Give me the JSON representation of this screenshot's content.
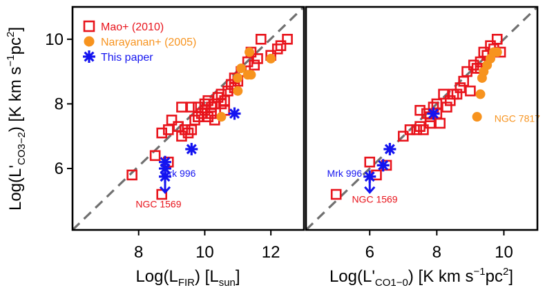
{
  "colors": {
    "mao": "#e8141c",
    "narayanan": "#f7931e",
    "this_paper": "#1414f0",
    "fit_line": "#707070"
  },
  "panels": [
    {
      "xlabel_main": "Log(L",
      "xlabel_sub": "FIR",
      "xlabel_mid": ") [L",
      "xlabel_sub2": "sun",
      "xlabel_end": "]",
      "xlim": [
        6,
        13
      ],
      "ylim": [
        4.1,
        11
      ],
      "xticks": [
        8,
        10,
        12
      ],
      "yticks": [
        6,
        8,
        10
      ],
      "mao": [
        [
          7.8,
          5.8
        ],
        [
          8.5,
          6.4
        ],
        [
          8.7,
          5.2
        ],
        [
          8.9,
          6.2
        ],
        [
          8.7,
          7.1
        ],
        [
          8.9,
          7.2
        ],
        [
          9.0,
          7.5
        ],
        [
          9.2,
          7.3
        ],
        [
          9.3,
          7.0
        ],
        [
          9.4,
          7.2
        ],
        [
          9.5,
          7.1
        ],
        [
          9.3,
          7.9
        ],
        [
          9.6,
          7.9
        ],
        [
          9.6,
          7.2
        ],
        [
          9.7,
          7.5
        ],
        [
          9.8,
          7.6
        ],
        [
          9.8,
          7.9
        ],
        [
          9.9,
          7.7
        ],
        [
          10.0,
          7.8
        ],
        [
          10.0,
          8.0
        ],
        [
          10.1,
          7.6
        ],
        [
          10.1,
          8.1
        ],
        [
          10.2,
          7.9
        ],
        [
          10.2,
          7.7
        ],
        [
          10.3,
          7.5
        ],
        [
          10.3,
          8.0
        ],
        [
          10.4,
          8.2
        ],
        [
          10.5,
          8.0
        ],
        [
          10.5,
          8.3
        ],
        [
          10.6,
          7.8
        ],
        [
          10.6,
          8.1
        ],
        [
          10.7,
          8.4
        ],
        [
          10.8,
          8.6
        ],
        [
          10.9,
          8.5
        ],
        [
          10.9,
          8.8
        ],
        [
          11.0,
          8.7
        ],
        [
          11.1,
          9.0
        ],
        [
          11.3,
          9.3
        ],
        [
          11.4,
          9.6
        ],
        [
          11.6,
          9.4
        ],
        [
          11.7,
          10.0
        ],
        [
          12.0,
          9.5
        ],
        [
          12.2,
          9.7
        ],
        [
          12.3,
          9.8
        ],
        [
          12.5,
          10.0
        ],
        [
          11.5,
          9.2
        ]
      ],
      "narayanan": [
        [
          10.5,
          7.6
        ],
        [
          11.0,
          8.8
        ],
        [
          11.0,
          8.4
        ],
        [
          11.1,
          9.1
        ],
        [
          11.3,
          8.9
        ],
        [
          11.4,
          8.9
        ],
        [
          11.35,
          9.6
        ],
        [
          12.0,
          9.4
        ]
      ],
      "this_paper": [
        [
          8.8,
          6.2
        ],
        [
          8.8,
          6.0
        ],
        [
          9.6,
          6.6
        ],
        [
          10.9,
          7.7
        ]
      ],
      "upper_limit": [
        8.8,
        5.75
      ],
      "labels": [
        {
          "text": "Mrk 996",
          "x": 9.2,
          "y": 5.85,
          "color": "this_paper"
        },
        {
          "text": "NGC 1569",
          "x": 8.6,
          "y": 4.9,
          "color": "mao"
        }
      ],
      "fit": [
        [
          6,
          4.1
        ],
        [
          13,
          11
        ]
      ]
    },
    {
      "xlabel_main": "Log(L'",
      "xlabel_sub": "CO1−0",
      "xlabel_mid": ") [K km s",
      "xlabel_sup": "−1",
      "xlabel_end": "pc",
      "xlabel_sup2": "2",
      "xlabel_close": "]",
      "xlim": [
        4.1,
        11
      ],
      "ylim": [
        4.1,
        11
      ],
      "xticks": [
        6,
        8,
        10
      ],
      "yticks": [
        6,
        8,
        10
      ],
      "mao": [
        [
          5.0,
          5.2
        ],
        [
          6.0,
          6.2
        ],
        [
          6.2,
          5.8
        ],
        [
          6.5,
          6.1
        ],
        [
          7.0,
          7.0
        ],
        [
          7.2,
          7.2
        ],
        [
          7.4,
          7.2
        ],
        [
          7.5,
          7.3
        ],
        [
          7.5,
          7.8
        ],
        [
          7.6,
          7.2
        ],
        [
          7.7,
          7.7
        ],
        [
          7.8,
          7.4
        ],
        [
          7.8,
          7.6
        ],
        [
          7.9,
          7.9
        ],
        [
          8.0,
          7.7
        ],
        [
          8.0,
          8.0
        ],
        [
          8.1,
          7.4
        ],
        [
          8.2,
          8.3
        ],
        [
          8.3,
          7.9
        ],
        [
          8.4,
          8.1
        ],
        [
          8.5,
          8.3
        ],
        [
          8.6,
          8.3
        ],
        [
          8.7,
          8.5
        ],
        [
          8.8,
          8.7
        ],
        [
          8.9,
          9.0
        ],
        [
          9.0,
          8.4
        ],
        [
          9.1,
          9.2
        ],
        [
          9.2,
          9.1
        ],
        [
          9.3,
          9.3
        ],
        [
          9.4,
          9.6
        ],
        [
          9.5,
          9.5
        ],
        [
          9.6,
          9.8
        ],
        [
          9.7,
          9.7
        ],
        [
          9.8,
          10.0
        ],
        [
          9.9,
          9.6
        ],
        [
          9.3,
          9.1
        ]
      ],
      "narayanan": [
        [
          9.2,
          7.6
        ],
        [
          9.3,
          8.3
        ],
        [
          9.35,
          8.8
        ],
        [
          9.4,
          9.0
        ],
        [
          9.5,
          9.2
        ],
        [
          9.6,
          9.4
        ],
        [
          9.7,
          9.6
        ],
        [
          9.8,
          9.6
        ]
      ],
      "this_paper": [
        [
          6.4,
          6.1
        ],
        [
          6.6,
          6.6
        ],
        [
          7.9,
          7.7
        ]
      ],
      "upper_limit": [
        6.0,
        5.75
      ],
      "labels": [
        {
          "text": "Mrk 996",
          "x": 5.25,
          "y": 5.85,
          "color": "this_paper"
        },
        {
          "text": "NGC 1569",
          "x": 6.15,
          "y": 5.05,
          "color": "mao"
        },
        {
          "text": "NGC 7817",
          "x": 10.4,
          "y": 7.55,
          "color": "narayanan"
        }
      ],
      "fit": [
        [
          4.1,
          4.1
        ],
        [
          11,
          11
        ]
      ]
    }
  ],
  "legend": [
    {
      "label": "Mao+ (2010)",
      "marker": "square",
      "color": "mao"
    },
    {
      "label": "Narayanan+ (2005)",
      "marker": "circle",
      "color": "narayanan"
    },
    {
      "label": "This paper",
      "marker": "asterisk",
      "color": "this_paper"
    }
  ],
  "ylabel": {
    "main": "Log(L'",
    "sub": "CO3−2",
    "mid": ") [K km s",
    "sup": "−1",
    "end": "pc",
    "sup2": "2",
    "close": "]"
  },
  "chart_data": [
    {
      "type": "scatter",
      "xlabel": "Log(L_FIR) [L_sun]",
      "ylabel": "Log(L'_CO3-2) [K km s^-1 pc^2]",
      "xlim": [
        6,
        13
      ],
      "ylim": [
        4.1,
        11
      ],
      "series": [
        {
          "name": "Mao+ (2010)",
          "n_points": 46
        },
        {
          "name": "Narayanan+ (2005)",
          "n_points": 8
        },
        {
          "name": "This paper",
          "n_points": 4
        }
      ],
      "annotations": [
        "Mrk 996",
        "NGC 1569"
      ]
    },
    {
      "type": "scatter",
      "xlabel": "Log(L'_CO1-0) [K km s^-1 pc^2]",
      "ylabel": "Log(L'_CO3-2) [K km s^-1 pc^2]",
      "xlim": [
        4.1,
        11
      ],
      "ylim": [
        4.1,
        11
      ],
      "series": [
        {
          "name": "Mao+ (2010)",
          "n_points": 36
        },
        {
          "name": "Narayanan+ (2005)",
          "n_points": 8
        },
        {
          "name": "This paper",
          "n_points": 3
        }
      ],
      "annotations": [
        "Mrk 996",
        "NGC 1569",
        "NGC 7817"
      ]
    }
  ]
}
